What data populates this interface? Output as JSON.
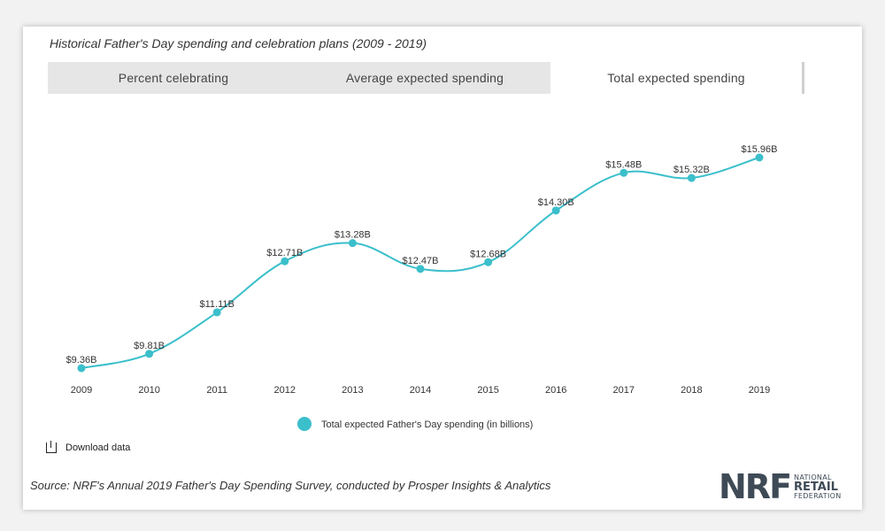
{
  "heading": "Historical Father's Day spending and celebration plans (2009 - 2019)",
  "tabs": [
    {
      "label": "Percent celebrating",
      "active": false
    },
    {
      "label": "Average expected spending",
      "active": false
    },
    {
      "label": "Total expected spending",
      "active": true
    }
  ],
  "download_label": "Download data",
  "source": "Source: NRF's Annual 2019 Father's Day Spending Survey, conducted by Prosper Insights & Analytics",
  "logo": {
    "mark": "NRF",
    "line1": "NATIONAL",
    "line2": "RETAIL",
    "line3": "FEDERATION"
  },
  "colors": {
    "series": "#3bbfcb",
    "text": "#333333",
    "tab_bg": "#e6e6e6"
  },
  "chart_data": {
    "type": "line",
    "title": "",
    "xlabel": "",
    "ylabel": "",
    "categories": [
      "2009",
      "2010",
      "2011",
      "2012",
      "2013",
      "2014",
      "2015",
      "2016",
      "2017",
      "2018",
      "2019"
    ],
    "series": [
      {
        "name": "Total expected Father's Day spending (in billions)",
        "values": [
          9.36,
          9.81,
          11.11,
          12.71,
          13.28,
          12.47,
          12.68,
          14.3,
          15.48,
          15.32,
          15.96
        ],
        "labels": [
          "$9.36B",
          "$9.81B",
          "$11.11B",
          "$12.71B",
          "$13.28B",
          "$12.47B",
          "$12.68B",
          "$14.30B",
          "$15.48B",
          "$15.32B",
          "$15.96B"
        ]
      }
    ],
    "grid": false,
    "legend": "bottom-center"
  }
}
